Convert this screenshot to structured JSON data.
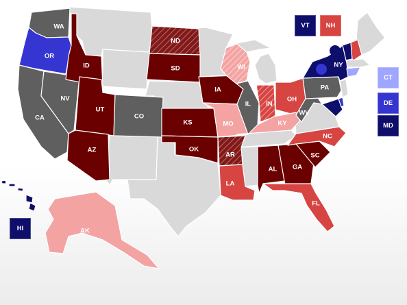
{
  "colors": {
    "solid_r": "#6b0000",
    "likely_r": "#d64541",
    "lean_r": "#f4a3a3",
    "tossup": "#5f5f5f",
    "lean_d": "#9fa6ff",
    "likely_d": "#3535d2",
    "solid_d": "#0e0e6b",
    "no_race": "#d9d9d9",
    "hatch_r": "#a63a3a"
  },
  "states": [
    {
      "abbr": "WA",
      "rating": "tossup"
    },
    {
      "abbr": "OR",
      "rating": "likely_d"
    },
    {
      "abbr": "CA",
      "rating": "tossup"
    },
    {
      "abbr": "NV",
      "rating": "tossup"
    },
    {
      "abbr": "ID",
      "rating": "solid_r"
    },
    {
      "abbr": "UT",
      "rating": "solid_r"
    },
    {
      "abbr": "AZ",
      "rating": "solid_r"
    },
    {
      "abbr": "CO",
      "rating": "tossup"
    },
    {
      "abbr": "ND",
      "rating": "hatch_r"
    },
    {
      "abbr": "SD",
      "rating": "solid_r"
    },
    {
      "abbr": "KS",
      "rating": "solid_r"
    },
    {
      "abbr": "OK",
      "rating": "solid_r"
    },
    {
      "abbr": "IA",
      "rating": "solid_r"
    },
    {
      "abbr": "MO",
      "rating": "lean_r"
    },
    {
      "abbr": "AR",
      "rating": "hatch_r"
    },
    {
      "abbr": "LA",
      "rating": "likely_r"
    },
    {
      "abbr": "WI",
      "rating": "hatch_lean_r"
    },
    {
      "abbr": "IL",
      "rating": "tossup"
    },
    {
      "abbr": "IN",
      "rating": "hatch_likely_r"
    },
    {
      "abbr": "OH",
      "rating": "likely_r"
    },
    {
      "abbr": "KY",
      "rating": "lean_r"
    },
    {
      "abbr": "AL",
      "rating": "solid_r"
    },
    {
      "abbr": "GA",
      "rating": "solid_r"
    },
    {
      "abbr": "SC",
      "rating": "solid_r"
    },
    {
      "abbr": "NC",
      "rating": "likely_r"
    },
    {
      "abbr": "FL",
      "rating": "likely_r"
    },
    {
      "abbr": "PA",
      "rating": "tossup"
    },
    {
      "abbr": "NY",
      "rating": "solid_d"
    },
    {
      "abbr": "WV",
      "rating": "tossup"
    },
    {
      "abbr": "AK",
      "rating": "lean_r"
    },
    {
      "abbr": "HI",
      "rating": "solid_d"
    }
  ],
  "callouts": [
    {
      "abbr": "VT",
      "rating": "solid_d"
    },
    {
      "abbr": "NH",
      "rating": "likely_r"
    },
    {
      "abbr": "CT",
      "rating": "lean_d"
    },
    {
      "abbr": "DE",
      "rating": "likely_d"
    },
    {
      "abbr": "MD",
      "rating": "solid_d"
    },
    {
      "abbr": "HI",
      "rating": "solid_d"
    }
  ]
}
